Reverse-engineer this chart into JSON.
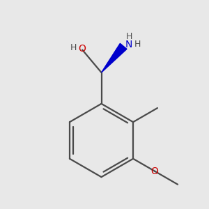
{
  "bg_color": "#e8e8e8",
  "bond_color": "#4a4a4a",
  "o_color": "#cc0000",
  "n_color": "#0000cc",
  "h_color": "#4a4a4a",
  "lw": 1.6,
  "figsize": [
    3.0,
    3.0
  ],
  "dpi": 100,
  "xlim": [
    -0.15,
    0.95
  ],
  "ylim": [
    -0.82,
    0.52
  ]
}
